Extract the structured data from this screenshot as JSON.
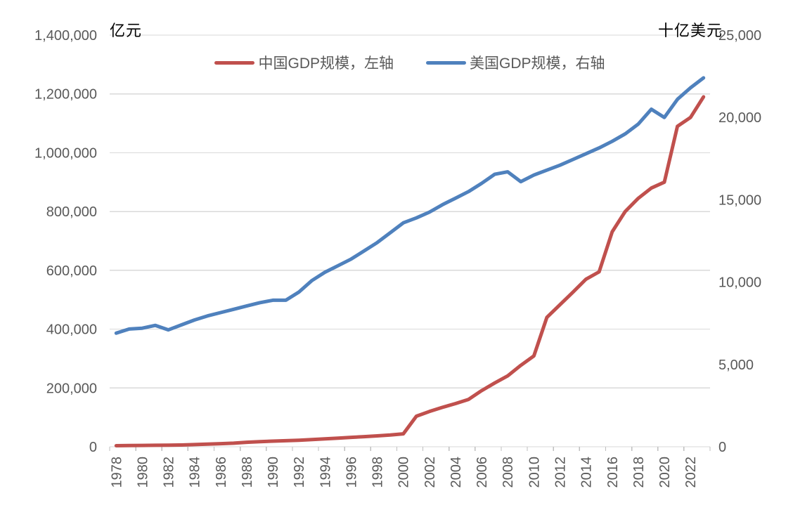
{
  "chart_data": {
    "type": "line",
    "title": "",
    "left_axis": {
      "title": "亿元",
      "min": 0,
      "max": 1400000,
      "step": 200000,
      "tick_labels": [
        "0",
        "200,000",
        "400,000",
        "600,000",
        "800,000",
        "1,000,000",
        "1,200,000",
        "1,400,000"
      ]
    },
    "right_axis": {
      "title": "十亿美元",
      "min": 0,
      "max": 25000,
      "step": 5000,
      "tick_labels": [
        "0",
        "5,000",
        "10,000",
        "15,000",
        "20,000",
        "25,000"
      ]
    },
    "x": [
      1978,
      1979,
      1980,
      1981,
      1982,
      1983,
      1984,
      1985,
      1986,
      1987,
      1988,
      1989,
      1990,
      1991,
      1992,
      1993,
      1994,
      1995,
      1996,
      1997,
      1998,
      1999,
      2000,
      2001,
      2002,
      2003,
      2004,
      2005,
      2006,
      2007,
      2008,
      2009,
      2010,
      2011,
      2012,
      2013,
      2014,
      2015,
      2016,
      2017,
      2018,
      2019,
      2020,
      2021,
      2022,
      2023
    ],
    "x_tick_labels": [
      "1978",
      "1980",
      "1982",
      "1984",
      "1986",
      "1988",
      "1990",
      "1992",
      "1994",
      "1996",
      "1998",
      "2000",
      "2002",
      "2004",
      "2006",
      "2008",
      "2010",
      "2012",
      "2014",
      "2016",
      "2018",
      "2020",
      "2022"
    ],
    "grid": true,
    "legend_position": "top",
    "series": [
      {
        "name": "中国GDP规模，左轴",
        "axis": "left",
        "color": "#c0504d",
        "values": [
          3700,
          4100,
          4600,
          5000,
          5400,
          6000,
          7300,
          9100,
          10400,
          12200,
          15200,
          17200,
          19000,
          20500,
          22300,
          24500,
          27000,
          29500,
          32000,
          34500,
          37000,
          40000,
          44000,
          104000,
          120000,
          134000,
          147000,
          161000,
          191000,
          217000,
          241000,
          277000,
          309000,
          440000,
          483000,
          526000,
          570000,
          595000,
          731000,
          800000,
          845000,
          880000,
          900000,
          1090000,
          1120000,
          1190000
        ]
      },
      {
        "name": "美国GDP规模，右轴",
        "axis": "right",
        "color": "#4f81bd",
        "values": [
          6900,
          7150,
          7200,
          7370,
          7100,
          7400,
          7700,
          7950,
          8150,
          8350,
          8550,
          8750,
          8900,
          8900,
          9400,
          10100,
          10600,
          11000,
          11400,
          11900,
          12400,
          13000,
          13600,
          13900,
          14250,
          14700,
          15100,
          15500,
          16000,
          16550,
          16700,
          16100,
          16500,
          16800,
          17100,
          17450,
          17800,
          18150,
          18550,
          19000,
          19600,
          20500,
          20000,
          21100,
          21800,
          22400
        ]
      }
    ]
  },
  "legend": {
    "items": [
      {
        "label": "中国GDP规模，左轴"
      },
      {
        "label": "美国GDP规模，右轴"
      }
    ]
  },
  "colors": {
    "china_line": "#c0504d",
    "us_line": "#4f81bd",
    "gridline": "#d9d9d9",
    "tick_mark": "#bfbfbf",
    "axis_label": "#595959",
    "axis_title": "#000000",
    "background": "#ffffff"
  }
}
